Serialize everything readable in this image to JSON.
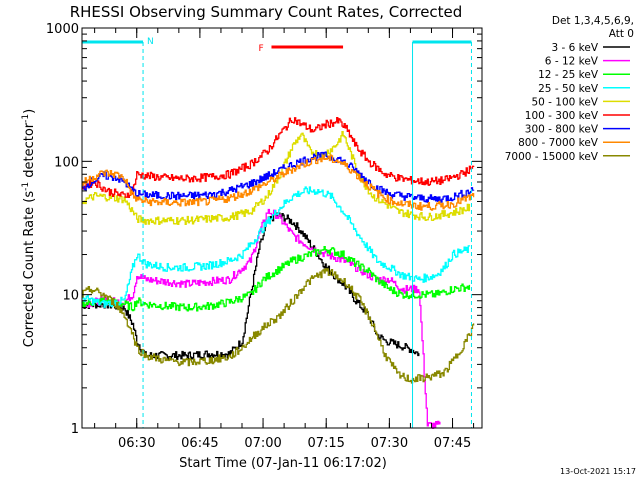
{
  "chart_data": {
    "type": "line",
    "title": "RHESSI Observing Summary Count Rates, Corrected",
    "xlabel": "Start Time (07-Jan-11 06:17:02)",
    "ylabel_main": "Corrected Count Rate (s",
    "ylabel_sup1": "-1",
    "ylabel_mid": " detector",
    "ylabel_sup2": "-1",
    "ylabel_end": ")",
    "y_scale": "log",
    "ylim": [
      1,
      1000
    ],
    "y_ticks": [
      {
        "value": 1,
        "label": "1"
      },
      {
        "value": 10,
        "label": "10"
      },
      {
        "value": 100,
        "label": "100"
      },
      {
        "value": 1000,
        "label": "1000"
      }
    ],
    "x_unit": "minutes after 06:17:02",
    "xlim": [
      0,
      95
    ],
    "x_ticks": [
      {
        "value": 13,
        "label": "06:30"
      },
      {
        "value": 28,
        "label": "06:45"
      },
      {
        "value": 43,
        "label": "07:00"
      },
      {
        "value": 58,
        "label": "07:15"
      },
      {
        "value": 73,
        "label": "07:30"
      },
      {
        "value": 88,
        "label": "07:45"
      }
    ],
    "legend_header": [
      "Det 1,3,4,5,6,9,",
      "Att 0"
    ],
    "legend_position": "right",
    "series": [
      {
        "name": "3 - 6 keV",
        "color": "#000000",
        "points": [
          [
            0,
            8.3
          ],
          [
            5,
            8.5
          ],
          [
            10,
            8.0
          ],
          [
            12,
            6.0
          ],
          [
            13,
            4.5
          ],
          [
            15,
            3.5
          ],
          [
            20,
            3.5
          ],
          [
            25,
            3.5
          ],
          [
            30,
            3.6
          ],
          [
            35,
            3.6
          ],
          [
            38,
            4.5
          ],
          [
            40,
            10
          ],
          [
            42,
            22
          ],
          [
            44,
            35
          ],
          [
            46,
            40
          ],
          [
            48,
            38
          ],
          [
            50,
            35
          ],
          [
            52,
            30
          ],
          [
            55,
            22
          ],
          [
            58,
            16
          ],
          [
            62,
            12
          ],
          [
            65,
            9
          ],
          [
            68,
            7
          ],
          [
            70,
            5
          ],
          [
            72,
            4.5
          ],
          [
            75,
            4.2
          ],
          [
            78,
            3.9
          ],
          [
            80,
            3.6
          ]
        ]
      },
      {
        "name": "6 - 12 keV",
        "color": "#ff00ff",
        "points": [
          [
            0,
            8.5
          ],
          [
            5,
            9.0
          ],
          [
            10,
            8.8
          ],
          [
            12,
            10
          ],
          [
            13,
            14
          ],
          [
            15,
            13
          ],
          [
            20,
            12.5
          ],
          [
            25,
            12
          ],
          [
            30,
            12.5
          ],
          [
            35,
            13
          ],
          [
            40,
            18
          ],
          [
            42,
            28
          ],
          [
            44,
            42
          ],
          [
            46,
            40
          ],
          [
            48,
            34
          ],
          [
            50,
            28
          ],
          [
            52,
            25
          ],
          [
            55,
            22
          ],
          [
            58,
            20
          ],
          [
            62,
            18
          ],
          [
            65,
            16
          ],
          [
            68,
            14
          ],
          [
            70,
            13
          ],
          [
            73,
            13
          ],
          [
            76,
            11
          ],
          [
            80,
            11
          ],
          [
            82,
            1.05
          ],
          [
            85,
            1.05
          ]
        ]
      },
      {
        "name": "12 - 25 keV",
        "color": "#00ff00",
        "points": [
          [
            0,
            8.5
          ],
          [
            5,
            9
          ],
          [
            10,
            8.5
          ],
          [
            12,
            8
          ],
          [
            13,
            9
          ],
          [
            15,
            8.5
          ],
          [
            20,
            8.2
          ],
          [
            25,
            8
          ],
          [
            30,
            8.2
          ],
          [
            35,
            8.8
          ],
          [
            40,
            10
          ],
          [
            43,
            13
          ],
          [
            46,
            15
          ],
          [
            50,
            18
          ],
          [
            54,
            20
          ],
          [
            58,
            22
          ],
          [
            62,
            20
          ],
          [
            65,
            17
          ],
          [
            68,
            15
          ],
          [
            70,
            13
          ],
          [
            73,
            11
          ],
          [
            76,
            10
          ],
          [
            80,
            10
          ],
          [
            84,
            10
          ],
          [
            88,
            11
          ],
          [
            92,
            11.5
          ]
        ]
      },
      {
        "name": "25 - 50 keV",
        "color": "#00ffff",
        "points": [
          [
            0,
            9.5
          ],
          [
            5,
            8.5
          ],
          [
            10,
            9
          ],
          [
            12,
            16
          ],
          [
            13,
            20
          ],
          [
            15,
            17
          ],
          [
            20,
            16
          ],
          [
            25,
            16
          ],
          [
            30,
            16.5
          ],
          [
            35,
            18
          ],
          [
            38,
            20
          ],
          [
            41,
            26
          ],
          [
            44,
            35
          ],
          [
            47,
            45
          ],
          [
            50,
            55
          ],
          [
            53,
            60
          ],
          [
            56,
            60
          ],
          [
            59,
            55
          ],
          [
            62,
            42
          ],
          [
            65,
            30
          ],
          [
            68,
            22
          ],
          [
            70,
            18
          ],
          [
            73,
            16
          ],
          [
            76,
            14
          ],
          [
            80,
            13
          ],
          [
            84,
            14
          ],
          [
            86,
            16
          ],
          [
            88,
            20
          ],
          [
            92,
            22
          ]
        ]
      },
      {
        "name": "50 - 100 keV",
        "color": "#dddd00",
        "points": [
          [
            0,
            50
          ],
          [
            3,
            55
          ],
          [
            6,
            54
          ],
          [
            10,
            52
          ],
          [
            12,
            42
          ],
          [
            13,
            37
          ],
          [
            15,
            36
          ],
          [
            20,
            36
          ],
          [
            25,
            36
          ],
          [
            30,
            37
          ],
          [
            35,
            38
          ],
          [
            40,
            42
          ],
          [
            44,
            55
          ],
          [
            47,
            80
          ],
          [
            50,
            130
          ],
          [
            52,
            160
          ],
          [
            54,
            120
          ],
          [
            57,
            110
          ],
          [
            60,
            130
          ],
          [
            62,
            160
          ],
          [
            64,
            110
          ],
          [
            66,
            75
          ],
          [
            69,
            55
          ],
          [
            72,
            48
          ],
          [
            75,
            42
          ],
          [
            78,
            40
          ],
          [
            82,
            38
          ],
          [
            86,
            40
          ],
          [
            89,
            42
          ],
          [
            92,
            45
          ]
        ]
      },
      {
        "name": "100 - 300 keV",
        "color": "#ff0000",
        "points": [
          [
            0,
            65
          ],
          [
            3,
            70
          ],
          [
            6,
            60
          ],
          [
            10,
            55
          ],
          [
            12,
            60
          ],
          [
            13,
            80
          ],
          [
            15,
            78
          ],
          [
            20,
            75
          ],
          [
            25,
            74
          ],
          [
            30,
            76
          ],
          [
            35,
            80
          ],
          [
            40,
            95
          ],
          [
            44,
            120
          ],
          [
            47,
            160
          ],
          [
            50,
            210
          ],
          [
            52,
            190
          ],
          [
            55,
            170
          ],
          [
            58,
            190
          ],
          [
            61,
            200
          ],
          [
            63,
            170
          ],
          [
            65,
            130
          ],
          [
            68,
            100
          ],
          [
            72,
            80
          ],
          [
            75,
            75
          ],
          [
            78,
            72
          ],
          [
            82,
            70
          ],
          [
            86,
            72
          ],
          [
            90,
            80
          ],
          [
            93,
            90
          ]
        ]
      },
      {
        "name": "300 - 800 keV",
        "color": "#0000ff",
        "points": [
          [
            0,
            62
          ],
          [
            2,
            70
          ],
          [
            5,
            78
          ],
          [
            8,
            76
          ],
          [
            10,
            70
          ],
          [
            12,
            60
          ],
          [
            13,
            57
          ],
          [
            15,
            56
          ],
          [
            20,
            55
          ],
          [
            25,
            55
          ],
          [
            30,
            56
          ],
          [
            35,
            60
          ],
          [
            40,
            68
          ],
          [
            45,
            80
          ],
          [
            50,
            95
          ],
          [
            55,
            108
          ],
          [
            58,
            110
          ],
          [
            61,
            104
          ],
          [
            64,
            90
          ],
          [
            67,
            75
          ],
          [
            70,
            63
          ],
          [
            73,
            57
          ],
          [
            76,
            55
          ],
          [
            80,
            53
          ],
          [
            84,
            52
          ],
          [
            88,
            54
          ],
          [
            91,
            58
          ],
          [
            93,
            62
          ]
        ]
      },
      {
        "name": "800 - 7000 keV",
        "color": "#ff8800",
        "points": [
          [
            0,
            68
          ],
          [
            2,
            75
          ],
          [
            5,
            82
          ],
          [
            8,
            80
          ],
          [
            10,
            75
          ],
          [
            12,
            55
          ],
          [
            13,
            52
          ],
          [
            15,
            50
          ],
          [
            20,
            49
          ],
          [
            25,
            49
          ],
          [
            30,
            50
          ],
          [
            35,
            53
          ],
          [
            40,
            60
          ],
          [
            45,
            72
          ],
          [
            50,
            88
          ],
          [
            55,
            102
          ],
          [
            58,
            106
          ],
          [
            61,
            100
          ],
          [
            64,
            86
          ],
          [
            67,
            70
          ],
          [
            70,
            58
          ],
          [
            73,
            51
          ],
          [
            76,
            48
          ],
          [
            80,
            46
          ],
          [
            84,
            46
          ],
          [
            88,
            48
          ],
          [
            91,
            52
          ],
          [
            93,
            55
          ]
        ]
      },
      {
        "name": "7000 - 15000 keV",
        "color": "#888800",
        "points": [
          [
            0,
            10
          ],
          [
            2,
            11
          ],
          [
            5,
            10
          ],
          [
            8,
            8.5
          ],
          [
            10,
            7
          ],
          [
            12,
            5
          ],
          [
            13,
            4
          ],
          [
            15,
            3.5
          ],
          [
            20,
            3.2
          ],
          [
            25,
            3.1
          ],
          [
            30,
            3.2
          ],
          [
            35,
            3.4
          ],
          [
            38,
            4
          ],
          [
            41,
            5
          ],
          [
            44,
            6
          ],
          [
            47,
            7
          ],
          [
            50,
            9
          ],
          [
            53,
            12
          ],
          [
            56,
            14
          ],
          [
            58,
            15
          ],
          [
            60,
            14
          ],
          [
            63,
            12
          ],
          [
            66,
            9
          ],
          [
            69,
            6
          ],
          [
            72,
            3.5
          ],
          [
            75,
            2.5
          ],
          [
            78,
            2.3
          ],
          [
            82,
            2.4
          ],
          [
            86,
            2.6
          ],
          [
            89,
            3.5
          ],
          [
            92,
            5
          ],
          [
            93,
            6
          ]
        ]
      }
    ],
    "markers": {
      "N": {
        "label": "N",
        "color": "#00e5ee",
        "segments": [
          [
            0,
            14.5
          ],
          [
            78.5,
            92.5
          ]
        ]
      },
      "F": {
        "label": "F",
        "color": "#ff0000",
        "segments": [
          [
            45,
            62
          ]
        ]
      }
    }
  },
  "footer_date": "13-Oct-2021 15:17"
}
